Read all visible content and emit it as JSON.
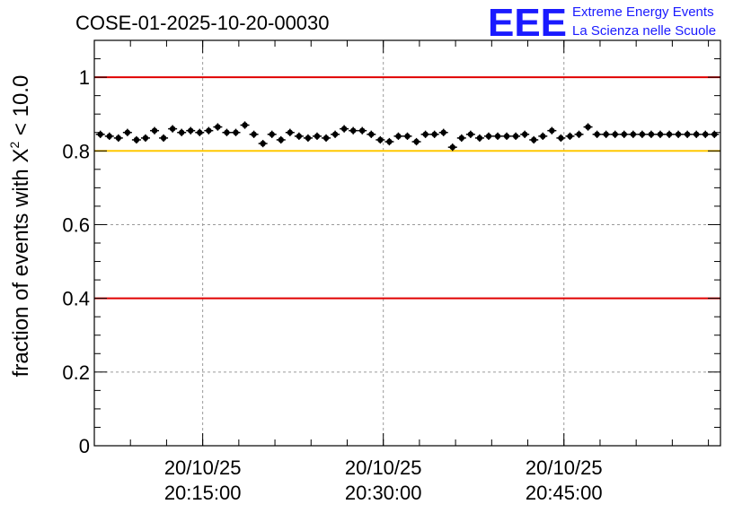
{
  "chart_data": {
    "type": "scatter",
    "title": "COSE-01-2025-10-20-00030",
    "ylabel_main": "fraction of events with ",
    "ylabel_chi": "X",
    "ylabel_sup": "2",
    "ylabel_tail": " < 10.0",
    "ylim": [
      0,
      1.1
    ],
    "xlim": [
      "20:06:00",
      "20:58:00"
    ],
    "y_ticks": [
      {
        "value": 0,
        "label": "0"
      },
      {
        "value": 0.2,
        "label": "0.2"
      },
      {
        "value": 0.4,
        "label": "0.4"
      },
      {
        "value": 0.6,
        "label": "0.6"
      },
      {
        "value": 0.8,
        "label": "0.8"
      },
      {
        "value": 1.0,
        "label": "1"
      }
    ],
    "x_ticks": [
      {
        "time": "20:15:00",
        "date": "20/10/25",
        "label": "20:15:00"
      },
      {
        "time": "20:30:00",
        "date": "20/10/25",
        "label": "20:30:00"
      },
      {
        "time": "20:45:00",
        "date": "20/10/25",
        "label": "20:45:00"
      }
    ],
    "grid": true,
    "reference_lines": [
      {
        "y": 1.0,
        "color": "#e00000"
      },
      {
        "y": 0.8,
        "color": "#ffc800"
      },
      {
        "y": 0.4,
        "color": "#e00000"
      }
    ],
    "x": [
      "20:06:30",
      "20:07:15",
      "20:08:00",
      "20:08:45",
      "20:09:30",
      "20:10:15",
      "20:11:00",
      "20:11:45",
      "20:12:30",
      "20:13:15",
      "20:14:00",
      "20:14:45",
      "20:15:30",
      "20:16:15",
      "20:17:00",
      "20:17:45",
      "20:18:30",
      "20:19:15",
      "20:20:00",
      "20:20:45",
      "20:21:30",
      "20:22:15",
      "20:23:00",
      "20:23:45",
      "20:24:30",
      "20:25:15",
      "20:26:00",
      "20:26:45",
      "20:27:30",
      "20:28:15",
      "20:29:00",
      "20:29:45",
      "20:30:30",
      "20:31:15",
      "20:32:00",
      "20:32:45",
      "20:33:30",
      "20:34:15",
      "20:35:00",
      "20:35:45",
      "20:36:30",
      "20:37:15",
      "20:38:00",
      "20:38:45",
      "20:39:30",
      "20:40:15",
      "20:41:00",
      "20:41:45",
      "20:42:30",
      "20:43:15",
      "20:44:00",
      "20:44:45",
      "20:45:30",
      "20:46:15",
      "20:47:00",
      "20:47:45",
      "20:48:30",
      "20:49:15",
      "20:50:00",
      "20:50:45",
      "20:51:30",
      "20:52:15",
      "20:53:00",
      "20:53:45",
      "20:54:30",
      "20:55:15",
      "20:56:00",
      "20:56:45",
      "20:57:30"
    ],
    "y": [
      0.845,
      0.84,
      0.835,
      0.85,
      0.83,
      0.835,
      0.855,
      0.835,
      0.86,
      0.85,
      0.855,
      0.85,
      0.855,
      0.865,
      0.85,
      0.85,
      0.87,
      0.845,
      0.82,
      0.845,
      0.83,
      0.85,
      0.84,
      0.835,
      0.84,
      0.835,
      0.845,
      0.86,
      0.855,
      0.855,
      0.845,
      0.83,
      0.825,
      0.84,
      0.84,
      0.825,
      0.845,
      0.845,
      0.85,
      0.81,
      0.835,
      0.845,
      0.835,
      0.84,
      0.84,
      0.84,
      0.84,
      0.845,
      0.83,
      0.84,
      0.855,
      0.835,
      0.84,
      0.845,
      0.865,
      0.845,
      0.845,
      0.845,
      0.845,
      0.845,
      0.845,
      0.845,
      0.845,
      0.845,
      0.845,
      0.845,
      0.845,
      0.845,
      0.845
    ],
    "yerr": 0.01,
    "marker_color": "#000000"
  },
  "logo": {
    "mark": "EEE",
    "line1": "Extreme Energy Events",
    "line2": "La Scienza nelle Scuole",
    "color": "#1a1aff"
  }
}
